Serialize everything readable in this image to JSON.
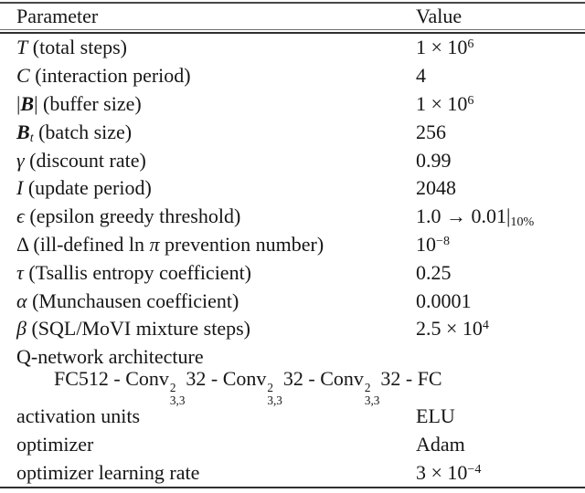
{
  "table": {
    "header": {
      "param": "Parameter",
      "value": "Value"
    },
    "rows": [
      {
        "param": "<i>T</i> (total steps)",
        "value": "1 × 10<sup>6</sup>"
      },
      {
        "param": "<i>C</i> (interaction period)",
        "value": "4"
      },
      {
        "param": "|<span class='cal'>B</span>| (buffer size)",
        "value": "1 × 10<sup>6</sup>"
      },
      {
        "param": "<span class='cal'>B</span><sub><i>t</i></sub> (batch size)",
        "value": "256"
      },
      {
        "param": "<i>γ</i> (discount rate)",
        "value": "0.99"
      },
      {
        "param": "<i>I</i> (update period)",
        "value": "2048"
      },
      {
        "param": "<i>ϵ</i> (epsilon greedy threshold)",
        "value": "1.0 → 0.01|<sub>10%</sub>"
      },
      {
        "param": "Δ (ill-defined ln <i>π</i> prevention number)",
        "value": "10<sup>−8</sup>"
      },
      {
        "param": "<i>τ</i> (Tsallis entropy coefficient)",
        "value": "0.25"
      },
      {
        "param": "<i>α</i> (Munchausen coefficient)",
        "value": "0.0001"
      },
      {
        "param": "<i>β</i> (SQL/MoVI mixture steps)",
        "value": "2.5 × 10<sup>4</sup>"
      }
    ],
    "architecture_label": "Q-network architecture",
    "architecture_value": "FC512 - Conv<span class='ss'><span>2</span><span>3,3</span></span>32 - Conv<span class='ss'><span>2</span><span>3,3</span></span>32 - Conv<span class='ss'><span>2</span><span>3,3</span></span>32 - FC",
    "rows_bottom": [
      {
        "param": "activation units",
        "value": "ELU"
      },
      {
        "param": "optimizer",
        "value": "Adam"
      },
      {
        "param": "optimizer learning rate",
        "value": "3 × 10<sup>−4</sup>"
      }
    ]
  }
}
